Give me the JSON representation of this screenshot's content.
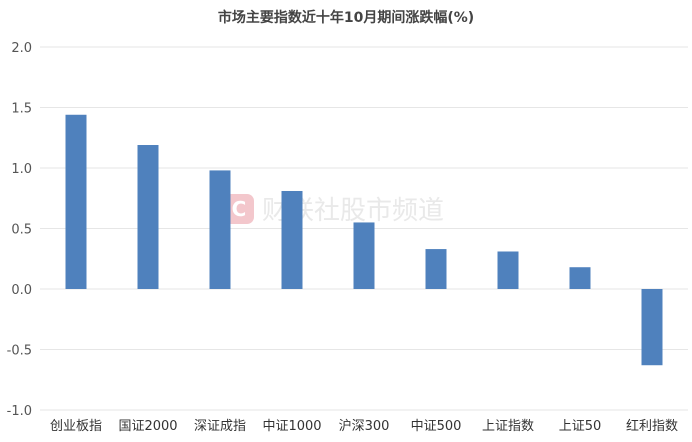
{
  "chart_data": {
    "type": "bar",
    "title": "市场主要指数近十年10月期间涨跌幅(%)",
    "categories": [
      "创业板指",
      "国证2000",
      "深证成指",
      "中证1000",
      "沪深300",
      "中证500",
      "上证指数",
      "上证50",
      "红利指数"
    ],
    "values": [
      1.44,
      1.19,
      0.98,
      0.81,
      0.55,
      0.33,
      0.31,
      0.18,
      -0.63
    ],
    "ylim": [
      -1.0,
      2.0
    ],
    "yticks": [
      "2.0",
      "1.5",
      "1.0",
      "0.5",
      "0.0",
      "-0.5",
      "-1.0"
    ],
    "xlabel": "",
    "ylabel": "",
    "grid": true,
    "bar_color": "#4f81bd",
    "grid_color": "#e6e6e6"
  },
  "watermark": {
    "text": "财联社股市频道",
    "icon": "cls-logo-icon",
    "icon_letter": "C",
    "color": "#f3c7cc"
  }
}
